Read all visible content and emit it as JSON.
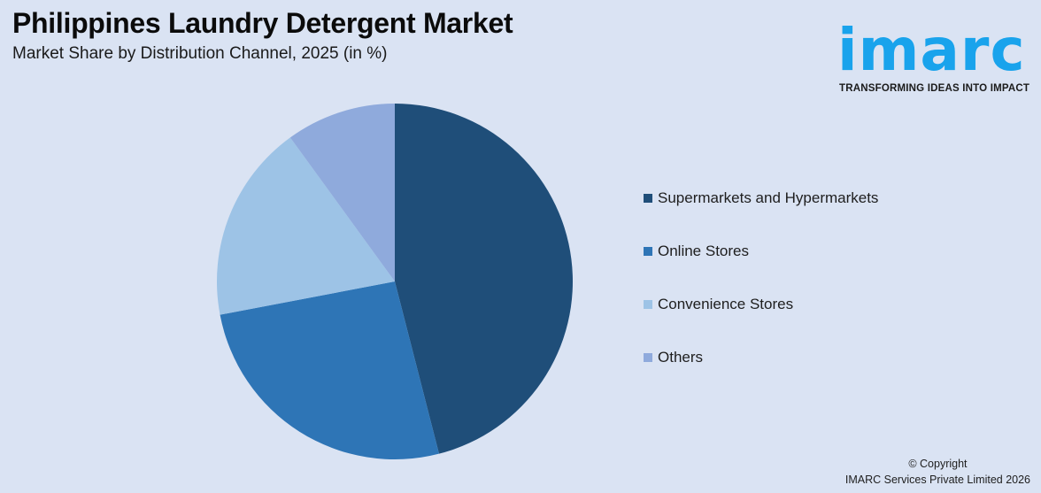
{
  "header": {
    "title": "Philippines Laundry Detergent Market",
    "subtitle": "Market Share by Distribution Channel, 2025 (in %)"
  },
  "logo": {
    "wordmark": "imarc",
    "tagline": "TRANSFORMING IDEAS INTO IMPACT",
    "color": "#19a3ec"
  },
  "legend": {
    "items": [
      {
        "label": "Supermarkets and Hypermarkets",
        "color": "#1f4e79"
      },
      {
        "label": "Online Stores",
        "color": "#2e75b6"
      },
      {
        "label": "Convenience Stores",
        "color": "#9dc3e6"
      },
      {
        "label": "Others",
        "color": "#8faadc"
      }
    ]
  },
  "footer": {
    "copyright_line1": "© Copyright",
    "copyright_line2": "IMARC Services Private Limited 2026"
  },
  "chart_data": {
    "type": "pie",
    "title": "Philippines Laundry Detergent Market",
    "subtitle": "Market Share by Distribution Channel, 2025 (in %)",
    "categories": [
      "Supermarkets and Hypermarkets",
      "Online Stores",
      "Convenience Stores",
      "Others"
    ],
    "values": [
      46,
      26,
      18,
      10
    ],
    "colors": [
      "#1f4e79",
      "#2e75b6",
      "#9dc3e6",
      "#8faadc"
    ],
    "start_angle": "top (12 o'clock), clockwise",
    "legend_position": "right",
    "data_labels": false
  }
}
